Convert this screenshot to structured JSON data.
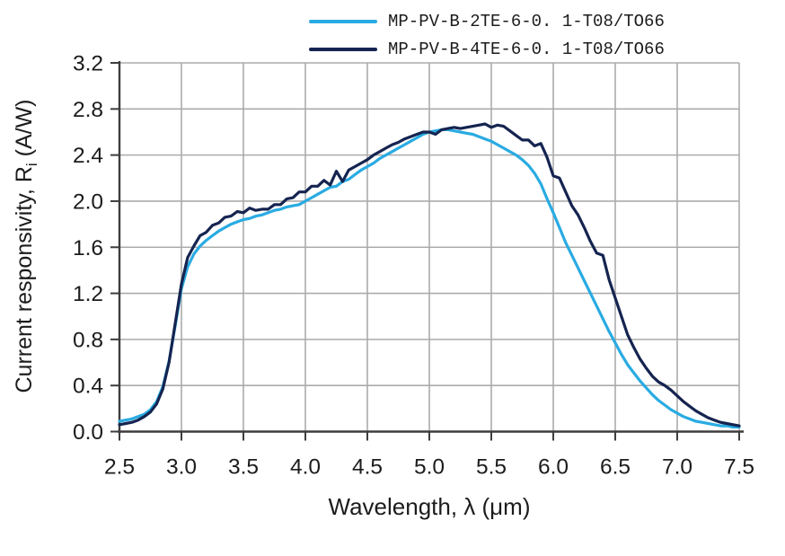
{
  "page": {
    "background": "#ffffff"
  },
  "legend": {
    "items": [
      {
        "label": "MP-PV-B-2TE-6-0. 1-T08/TO66",
        "color": "#29abe2"
      },
      {
        "label": "MP-PV-B-4TE-6-0. 1-T08/TO66",
        "color": "#152450"
      }
    ]
  },
  "chart_data": {
    "type": "line",
    "title": "",
    "xlabel": "Wavelength, λ (μm)",
    "ylabel": "Current responsivity, Ri (A/W)",
    "ylabel_parts": {
      "pre": "Current responsivity, R",
      "sub": "i",
      "post": " (A/W)"
    },
    "xlim": [
      2.5,
      7.5
    ],
    "ylim": [
      0.0,
      3.2
    ],
    "grid": true,
    "legend_position": "top",
    "axis_color": "#3d3d3d",
    "grid_color": "#ababab",
    "text_color": "#1c1c1c",
    "xticks": [
      2.5,
      3.0,
      3.5,
      4.0,
      4.5,
      5.0,
      5.5,
      6.0,
      6.5,
      7.0,
      7.5
    ],
    "xtick_labels": [
      "2.5",
      "3.0",
      "3.5",
      "4.0",
      "4.5",
      "5.0",
      "5.5",
      "6.0",
      "6.5",
      "7.0",
      "7.5"
    ],
    "yticks": [
      0.0,
      0.4,
      0.8,
      1.2,
      1.6,
      2.0,
      2.4,
      2.8,
      3.2
    ],
    "ytick_labels": [
      "0.0",
      "0.4",
      "0.8",
      "1.2",
      "1.6",
      "2.0",
      "2.4",
      "2.8",
      "3.2"
    ],
    "x": [
      2.5,
      2.55,
      2.6,
      2.65,
      2.7,
      2.75,
      2.8,
      2.85,
      2.9,
      2.95,
      3.0,
      3.05,
      3.1,
      3.15,
      3.2,
      3.25,
      3.3,
      3.35,
      3.4,
      3.45,
      3.5,
      3.55,
      3.6,
      3.65,
      3.7,
      3.75,
      3.8,
      3.85,
      3.9,
      3.95,
      4.0,
      4.05,
      4.1,
      4.15,
      4.2,
      4.25,
      4.3,
      4.35,
      4.4,
      4.45,
      4.5,
      4.55,
      4.6,
      4.65,
      4.7,
      4.75,
      4.8,
      4.85,
      4.9,
      4.95,
      5.0,
      5.05,
      5.1,
      5.15,
      5.2,
      5.25,
      5.3,
      5.35,
      5.4,
      5.45,
      5.5,
      5.55,
      5.6,
      5.65,
      5.7,
      5.75,
      5.8,
      5.85,
      5.9,
      5.95,
      6.0,
      6.05,
      6.1,
      6.15,
      6.2,
      6.25,
      6.3,
      6.35,
      6.4,
      6.45,
      6.5,
      6.55,
      6.6,
      6.65,
      6.7,
      6.75,
      6.8,
      6.85,
      6.9,
      6.95,
      7.0,
      7.05,
      7.1,
      7.15,
      7.2,
      7.25,
      7.3,
      7.35,
      7.4,
      7.45,
      7.5
    ],
    "series": [
      {
        "name": "MP-PV-B-2TE-6-0. 1-T08/TO66",
        "color": "#29abe2",
        "y": [
          0.09,
          0.1,
          0.11,
          0.13,
          0.15,
          0.19,
          0.26,
          0.39,
          0.61,
          0.92,
          1.24,
          1.43,
          1.54,
          1.61,
          1.66,
          1.7,
          1.74,
          1.77,
          1.8,
          1.82,
          1.84,
          1.85,
          1.87,
          1.88,
          1.9,
          1.92,
          1.93,
          1.95,
          1.96,
          1.97,
          2.0,
          2.03,
          2.06,
          2.09,
          2.12,
          2.13,
          2.17,
          2.19,
          2.23,
          2.27,
          2.3,
          2.33,
          2.37,
          2.4,
          2.43,
          2.46,
          2.49,
          2.52,
          2.55,
          2.58,
          2.6,
          2.61,
          2.62,
          2.62,
          2.61,
          2.6,
          2.59,
          2.58,
          2.56,
          2.54,
          2.52,
          2.49,
          2.46,
          2.43,
          2.4,
          2.36,
          2.31,
          2.24,
          2.15,
          2.02,
          1.9,
          1.77,
          1.64,
          1.53,
          1.42,
          1.31,
          1.2,
          1.09,
          0.98,
          0.87,
          0.77,
          0.67,
          0.58,
          0.51,
          0.44,
          0.38,
          0.32,
          0.27,
          0.23,
          0.19,
          0.16,
          0.13,
          0.11,
          0.09,
          0.08,
          0.07,
          0.06,
          0.05,
          0.05,
          0.04,
          0.04
        ]
      },
      {
        "name": "MP-PV-B-4TE-6-0. 1-T08/TO66",
        "color": "#152450",
        "y": [
          0.06,
          0.07,
          0.08,
          0.1,
          0.13,
          0.17,
          0.24,
          0.37,
          0.6,
          0.94,
          1.28,
          1.51,
          1.61,
          1.7,
          1.73,
          1.79,
          1.81,
          1.86,
          1.87,
          1.91,
          1.9,
          1.94,
          1.92,
          1.93,
          1.93,
          1.97,
          1.97,
          2.02,
          2.03,
          2.08,
          2.08,
          2.13,
          2.13,
          2.18,
          2.14,
          2.26,
          2.17,
          2.27,
          2.3,
          2.33,
          2.36,
          2.4,
          2.43,
          2.46,
          2.49,
          2.51,
          2.54,
          2.56,
          2.58,
          2.6,
          2.6,
          2.58,
          2.62,
          2.63,
          2.64,
          2.63,
          2.64,
          2.65,
          2.66,
          2.67,
          2.64,
          2.66,
          2.65,
          2.61,
          2.57,
          2.53,
          2.53,
          2.48,
          2.5,
          2.38,
          2.22,
          2.2,
          2.08,
          1.96,
          1.88,
          1.77,
          1.65,
          1.55,
          1.53,
          1.32,
          1.16,
          1.0,
          0.84,
          0.73,
          0.63,
          0.55,
          0.48,
          0.43,
          0.4,
          0.36,
          0.31,
          0.26,
          0.22,
          0.18,
          0.15,
          0.12,
          0.1,
          0.08,
          0.07,
          0.06,
          0.05
        ]
      }
    ]
  }
}
